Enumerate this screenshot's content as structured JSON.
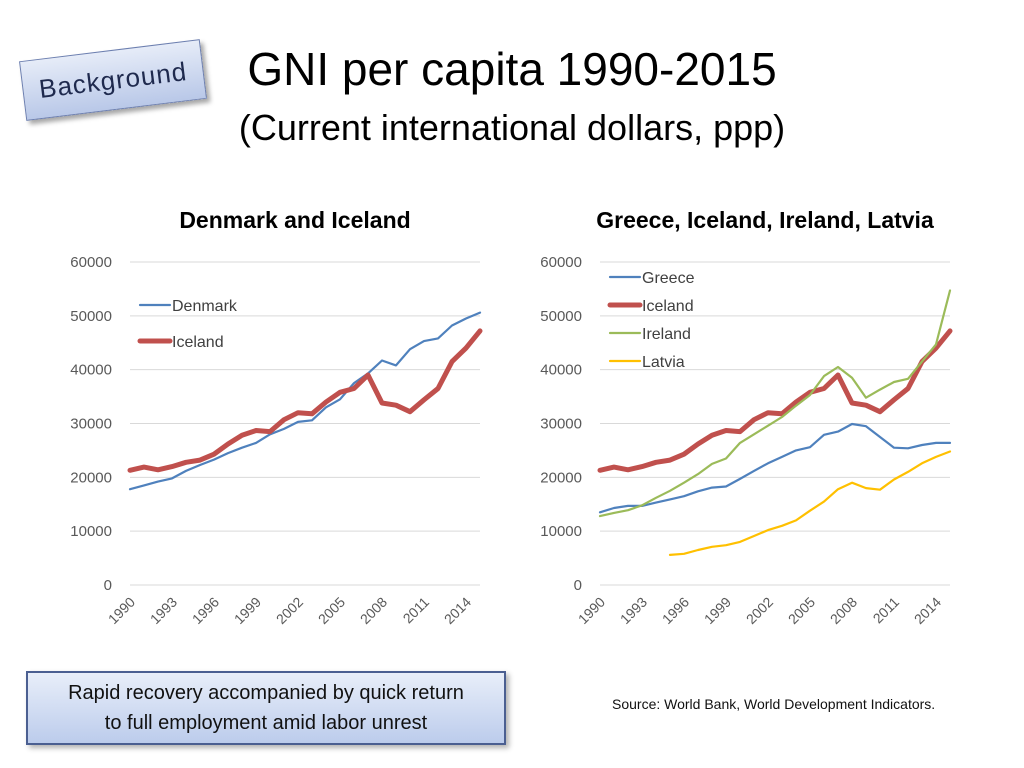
{
  "tag": {
    "label": "Background"
  },
  "title": {
    "main": "GNI per capita 1990-2015",
    "sub": "(Current international dollars, ppp)"
  },
  "callout": {
    "line1": "Rapid recovery accompanied by quick return",
    "line2": "to full employment amid labor unrest"
  },
  "source": "Source: World Bank, World Development Indicators.",
  "chart_data": [
    {
      "type": "line",
      "title": "Denmark and Iceland",
      "x": [
        1990,
        1991,
        1992,
        1993,
        1994,
        1995,
        1996,
        1997,
        1998,
        1999,
        2000,
        2001,
        2002,
        2003,
        2004,
        2005,
        2006,
        2007,
        2008,
        2009,
        2010,
        2011,
        2012,
        2013,
        2014,
        2015
      ],
      "x_tick_labels": [
        "1990",
        "1993",
        "1996",
        "1999",
        "2002",
        "2005",
        "2008",
        "2011",
        "2014"
      ],
      "ylim": [
        0,
        60000
      ],
      "y_ticks": [
        0,
        10000,
        20000,
        30000,
        40000,
        50000,
        60000
      ],
      "grid": true,
      "legend": "top-left",
      "series": [
        {
          "name": "Denmark",
          "color": "#4f81bd",
          "width": 2.2,
          "values": [
            17800,
            18500,
            19200,
            19800,
            21200,
            22300,
            23300,
            24500,
            25500,
            26400,
            28000,
            29000,
            30300,
            30600,
            33000,
            34500,
            37500,
            39300,
            41700,
            40800,
            43800,
            45300,
            45800,
            48200,
            49500,
            50600
          ]
        },
        {
          "name": "Iceland",
          "color": "#c0504d",
          "width": 5,
          "values": [
            21300,
            21900,
            21400,
            22000,
            22800,
            23200,
            24300,
            26200,
            27800,
            28700,
            28500,
            30700,
            32000,
            31800,
            34000,
            35800,
            36500,
            39000,
            33800,
            33400,
            32200,
            34400,
            36500,
            41500,
            44000,
            47200
          ]
        }
      ]
    },
    {
      "type": "line",
      "title": "Greece, Iceland, Ireland, Latvia",
      "x": [
        1990,
        1991,
        1992,
        1993,
        1994,
        1995,
        1996,
        1997,
        1998,
        1999,
        2000,
        2001,
        2002,
        2003,
        2004,
        2005,
        2006,
        2007,
        2008,
        2009,
        2010,
        2011,
        2012,
        2013,
        2014,
        2015
      ],
      "x_tick_labels": [
        "1990",
        "1993",
        "1996",
        "1999",
        "2002",
        "2005",
        "2008",
        "2011",
        "2014"
      ],
      "ylim": [
        0,
        60000
      ],
      "y_ticks": [
        0,
        10000,
        20000,
        30000,
        40000,
        50000,
        60000
      ],
      "grid": true,
      "legend": "top-left",
      "series": [
        {
          "name": "Greece",
          "color": "#4f81bd",
          "width": 2.2,
          "values": [
            13500,
            14300,
            14700,
            14700,
            15300,
            15900,
            16500,
            17400,
            18100,
            18300,
            19700,
            21200,
            22600,
            23800,
            25000,
            25600,
            27900,
            28500,
            29900,
            29500,
            27500,
            25500,
            25400,
            26000,
            26400,
            26400
          ]
        },
        {
          "name": "Iceland",
          "color": "#c0504d",
          "width": 5,
          "values": [
            21300,
            21900,
            21400,
            22000,
            22800,
            23200,
            24300,
            26200,
            27800,
            28700,
            28500,
            30700,
            32000,
            31800,
            34000,
            35800,
            36500,
            39000,
            33800,
            33400,
            32200,
            34400,
            36500,
            41500,
            44000,
            47200
          ]
        },
        {
          "name": "Ireland",
          "color": "#9bbb59",
          "width": 2.2,
          "values": [
            12800,
            13400,
            13900,
            14800,
            16200,
            17500,
            19000,
            20600,
            22500,
            23500,
            26400,
            28000,
            29600,
            31200,
            33300,
            35300,
            38800,
            40500,
            38500,
            34800,
            36300,
            37700,
            38300,
            41500,
            44700,
            54700
          ]
        },
        {
          "name": "Latvia",
          "color": "#ffc000",
          "width": 2.2,
          "values": [
            null,
            null,
            null,
            null,
            null,
            5600,
            5800,
            6500,
            7100,
            7400,
            8000,
            9100,
            10200,
            11000,
            12000,
            13800,
            15500,
            17800,
            19000,
            18000,
            17700,
            19600,
            21000,
            22600,
            23800,
            24800
          ]
        }
      ]
    }
  ]
}
